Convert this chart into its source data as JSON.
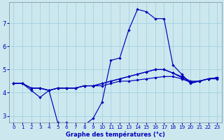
{
  "xlabel": "Graphe des températures (°c)",
  "background_color": "#cce8ee",
  "line_color": "#0000bb",
  "grid_color": "#99ccdd",
  "xlim": [
    -0.5,
    23.5
  ],
  "ylim": [
    2.7,
    7.9
  ],
  "x_ticks": [
    0,
    1,
    2,
    3,
    4,
    5,
    6,
    7,
    8,
    9,
    10,
    11,
    12,
    13,
    14,
    15,
    16,
    17,
    18,
    19,
    20,
    21,
    22,
    23
  ],
  "y_ticks": [
    3,
    4,
    5,
    6,
    7
  ],
  "lines": [
    [
      4.4,
      4.4,
      4.1,
      3.8,
      4.1,
      2.7,
      2.7,
      2.6,
      2.6,
      2.9,
      3.6,
      5.4,
      5.5,
      6.7,
      7.6,
      7.5,
      7.2,
      7.2,
      5.2,
      4.8,
      4.4,
      4.5,
      4.6,
      4.6
    ],
    [
      4.4,
      4.4,
      4.2,
      4.2,
      4.1,
      4.2,
      4.2,
      4.2,
      4.3,
      4.3,
      4.3,
      4.4,
      4.5,
      4.5,
      4.55,
      4.6,
      4.65,
      4.7,
      4.7,
      4.6,
      4.45,
      4.5,
      4.6,
      4.65
    ],
    [
      4.4,
      4.4,
      4.2,
      4.2,
      4.1,
      4.2,
      4.2,
      4.2,
      4.3,
      4.3,
      4.4,
      4.5,
      4.6,
      4.7,
      4.8,
      4.9,
      5.0,
      5.0,
      4.85,
      4.7,
      4.5,
      4.5,
      4.6,
      4.65
    ],
    [
      4.4,
      4.4,
      4.2,
      4.2,
      4.1,
      4.2,
      4.2,
      4.2,
      4.3,
      4.3,
      4.4,
      4.5,
      4.6,
      4.7,
      4.8,
      4.9,
      5.0,
      5.0,
      4.85,
      4.65,
      4.45,
      4.5,
      4.6,
      4.65
    ]
  ]
}
